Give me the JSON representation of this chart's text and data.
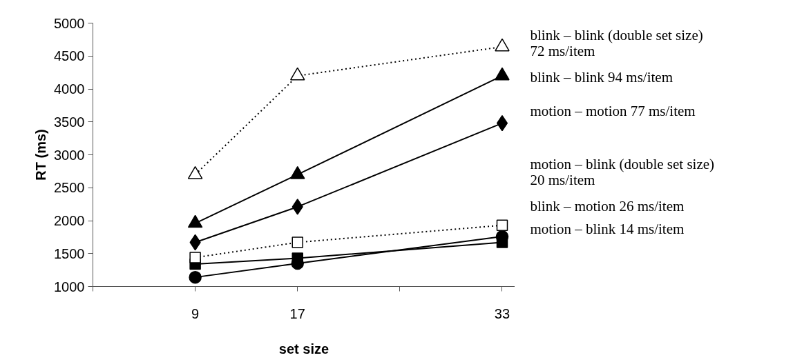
{
  "chart_data": {
    "type": "line",
    "xlabel": "set size",
    "ylabel": "RT (ms)",
    "x": [
      9,
      17,
      33
    ],
    "xlim": [
      1,
      34
    ],
    "xticks": [
      {
        "value": 1,
        "label": null
      },
      9,
      17,
      {
        "value": 25,
        "label": null
      },
      33
    ],
    "ylim": [
      1000,
      5000
    ],
    "yticks": [
      1000,
      1500,
      2000,
      2500,
      3000,
      3500,
      4000,
      4500,
      5000
    ],
    "grid": false,
    "legend": false,
    "series": [
      {
        "name": "blink – blink (double set size)\n72 ms/item",
        "color": "#000000",
        "marker": "triangle-open",
        "line_style": "dotted",
        "values": [
          2700,
          4200,
          4640
        ]
      },
      {
        "name": "blink – blink 94 ms/item",
        "color": "#000000",
        "marker": "triangle",
        "line_style": "solid",
        "values": [
          1960,
          2700,
          4200
        ]
      },
      {
        "name": "motion – motion 77 ms/item",
        "color": "#000000",
        "marker": "diamond",
        "line_style": "solid",
        "values": [
          1670,
          2210,
          3480
        ]
      },
      {
        "name": "motion – blink (double set size)\n20 ms/item",
        "color": "#000000",
        "marker": "square-open",
        "line_style": "dotted",
        "values": [
          1440,
          1670,
          1930
        ]
      },
      {
        "name": "blink – motion 26 ms/item",
        "color": "#000000",
        "marker": "circle",
        "line_style": "solid",
        "values": [
          1140,
          1350,
          1760
        ]
      },
      {
        "name": "motion – blink 14 ms/item",
        "color": "#000000",
        "marker": "square",
        "line_style": "solid",
        "values": [
          1340,
          1430,
          1670
        ]
      }
    ]
  }
}
